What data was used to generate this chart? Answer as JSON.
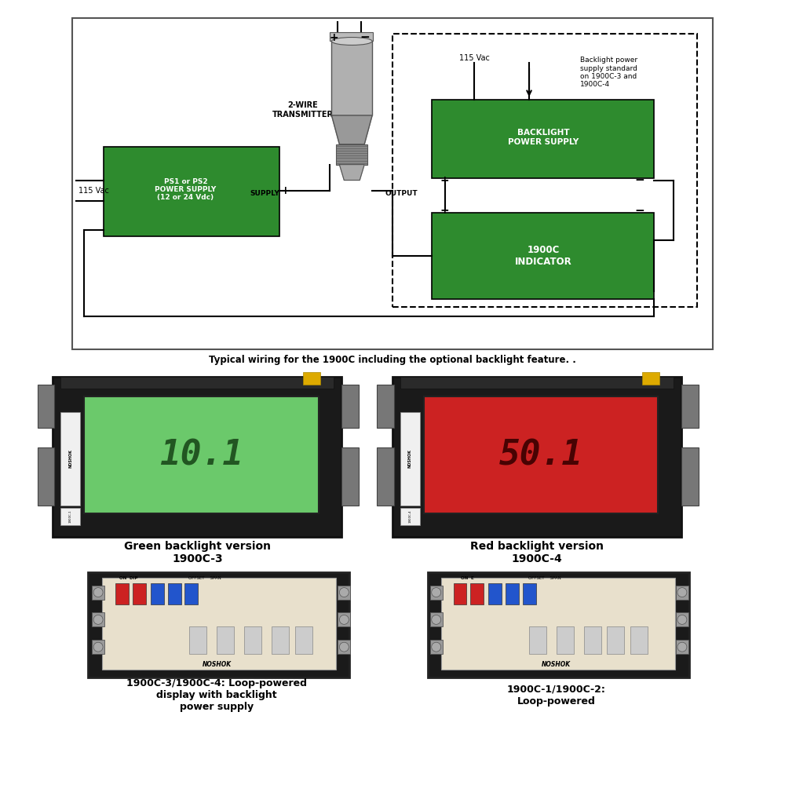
{
  "bg_color": "#ffffff",
  "green_box_color": "#2e8b2e",
  "green_box_text_color": "#ffffff",
  "black_color": "#000000",
  "caption_text": "Typical wiring for the 1900C including the optional backlight feature. .",
  "ps_box_label": "PS1 or PS2\nPOWER SUPPLY\n(12 or 24 Vdc)",
  "backlight_box_label": "BACKLIGHT\nPOWER SUPPLY",
  "indicator_box_label": "1900C\nINDICATOR",
  "transmitter_label": "2-WIRE\nTRANSMITTER",
  "supply_label": "SUPPLY",
  "output_label": "OUTPUT",
  "vac_left_label": "115 Vac",
  "vac_right_label": "115 Vac",
  "backlight_note": "Backlight power\nsupply standard\non 1900C-3 and\n1900C-4",
  "green_label1": "Green backlight version\n1900C-3",
  "green_label2": "Red backlight version\n1900C-4",
  "bottom_label1": "1900C-3/1900C-4: Loop-powered\ndisplay with backlight\npower supply",
  "bottom_label2": "1900C-1/1900C-2:\nLoop-powered"
}
